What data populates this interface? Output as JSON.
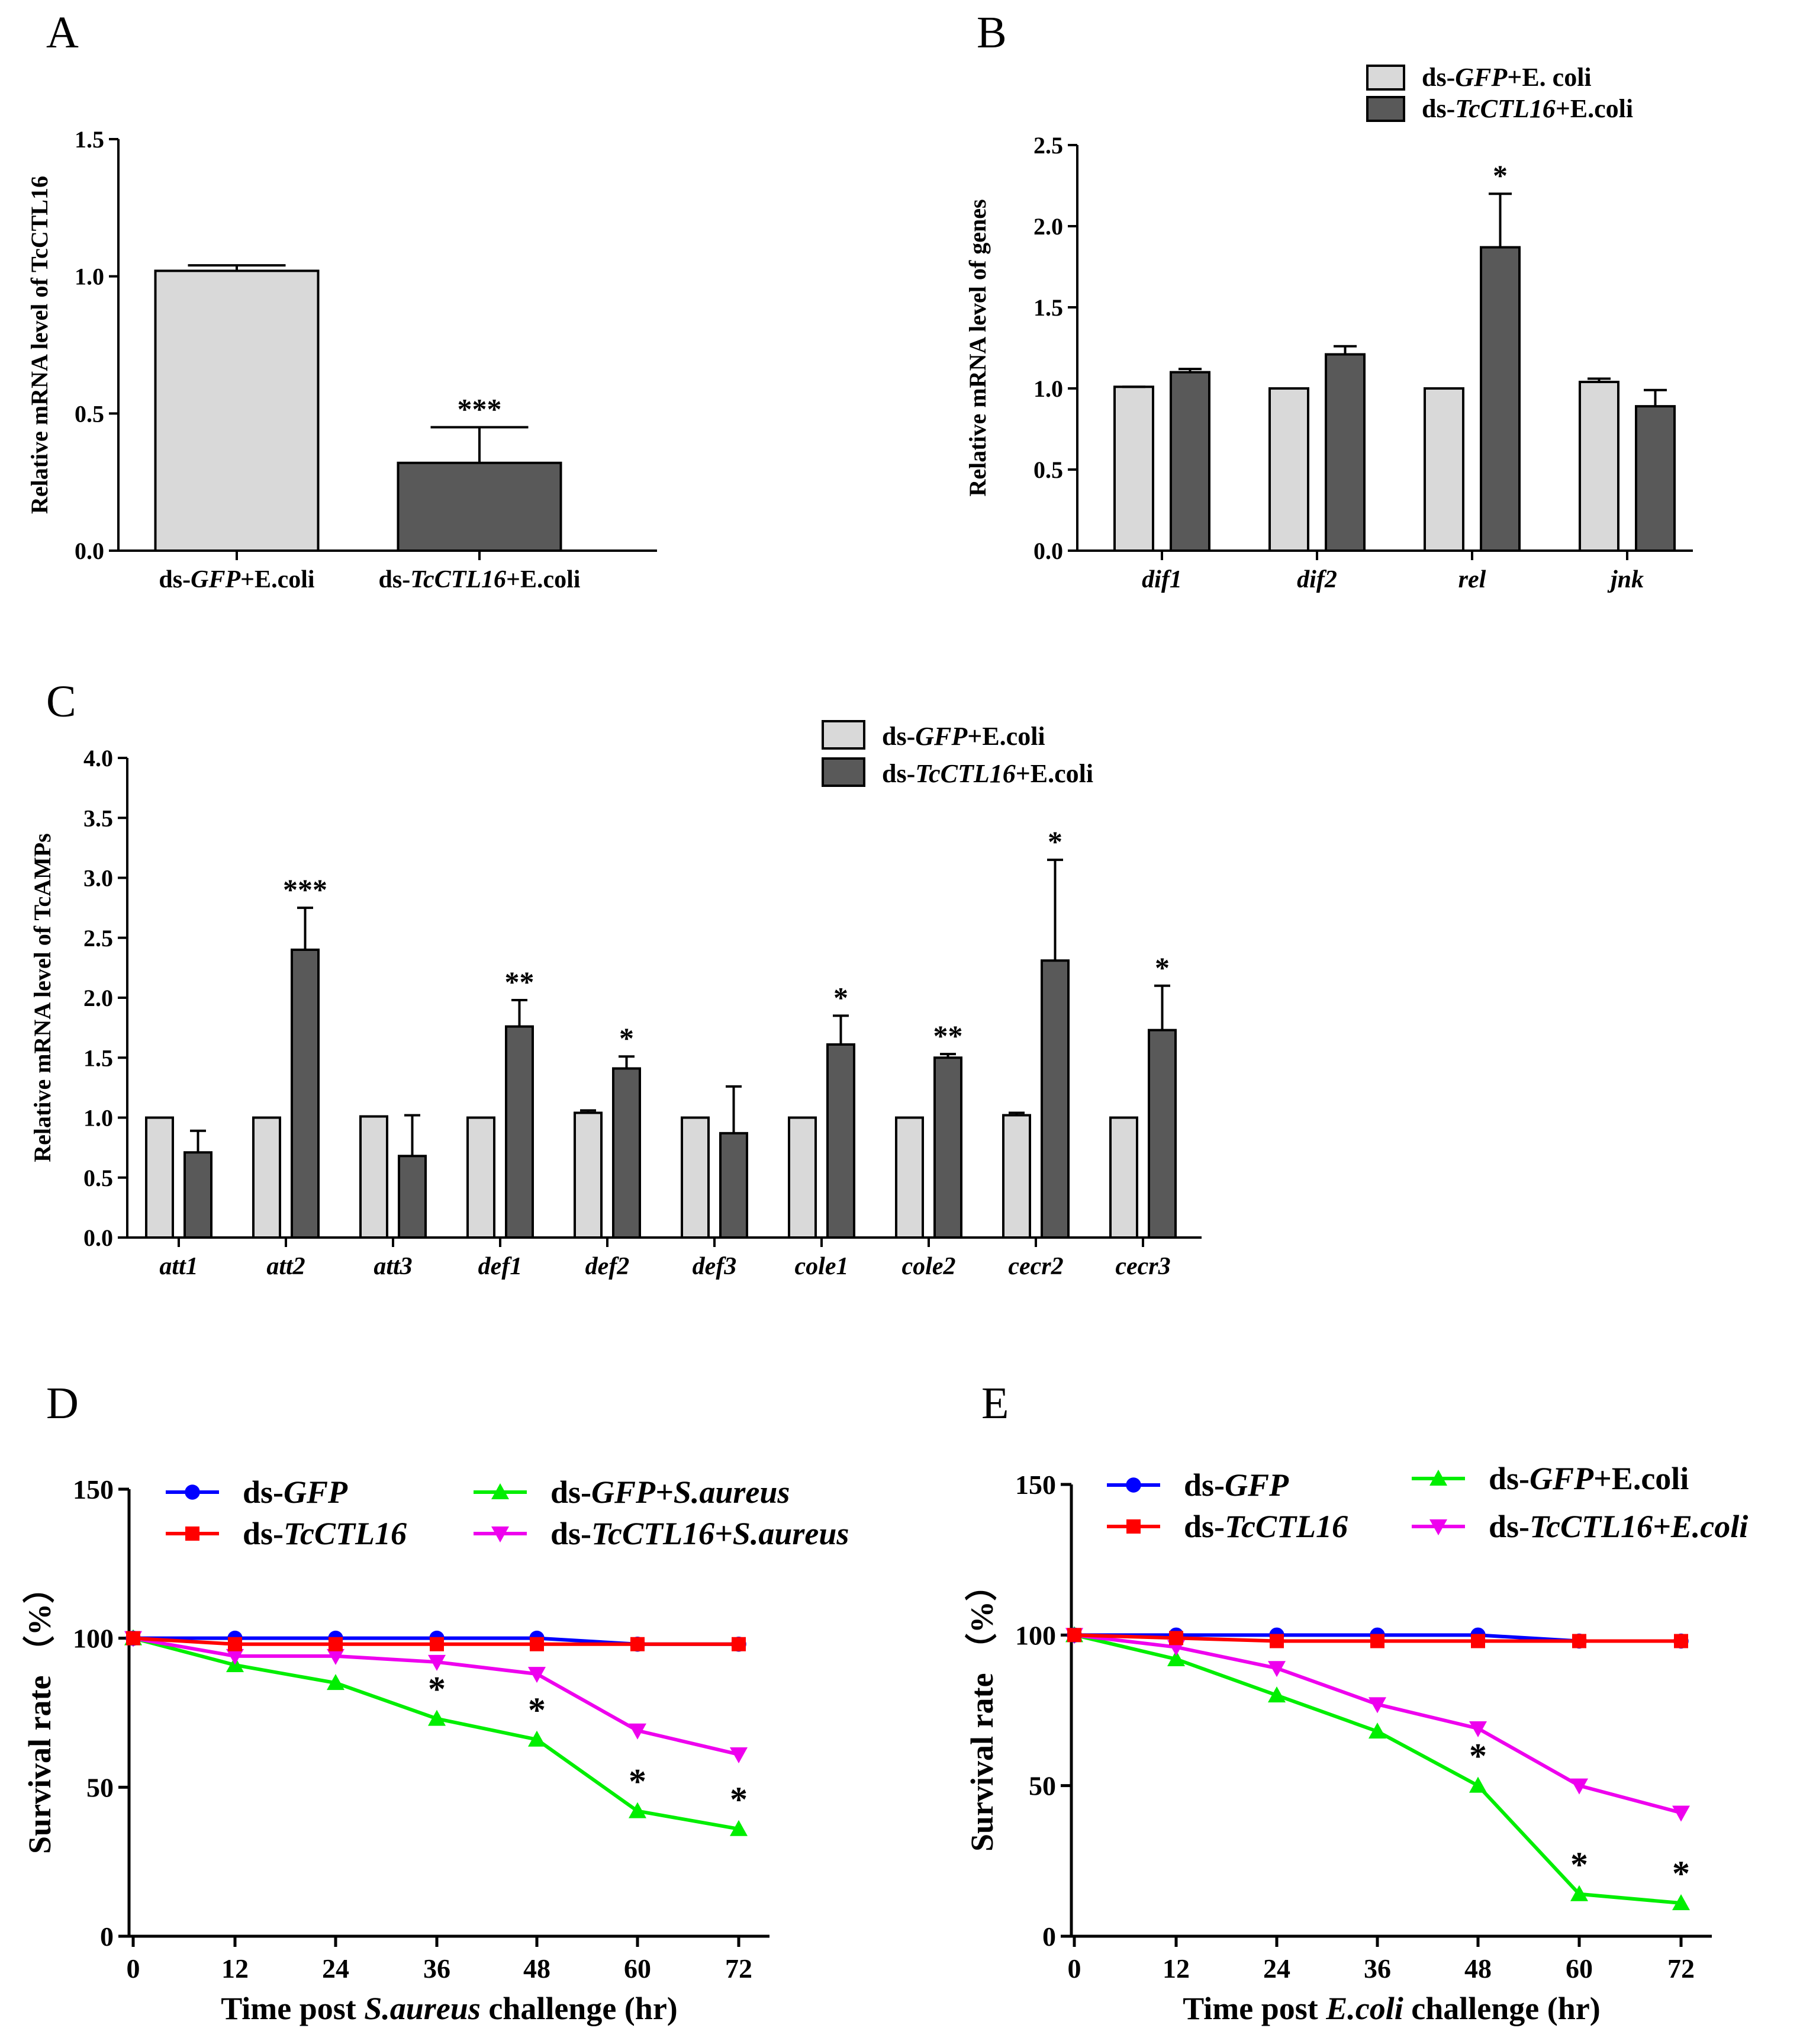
{
  "colors": {
    "light": "#d9d9d9",
    "dark": "#595959",
    "blue": "#0000ff",
    "red": "#ff0000",
    "green": "#00ee00",
    "magenta": "#ee00ee"
  },
  "chart_data": [
    {
      "id": "A",
      "type": "bar",
      "panel_label": "A",
      "ylabel": "Relative mRNA level of TcCTL16",
      "ylim": [
        0,
        1.5
      ],
      "yticks": [
        "0.0",
        "0.5",
        "1.0",
        "1.5"
      ],
      "categories": [
        {
          "prefix": "ds-",
          "ital": "GFP",
          "suffix": "+E.coli"
        },
        {
          "prefix": "ds-",
          "ital": "TcCTL16",
          "suffix": "+E.coli"
        }
      ],
      "series": [
        {
          "name": "values",
          "values": [
            1.02,
            0.32
          ],
          "errors": [
            0.02,
            0.13
          ],
          "colors": [
            "light",
            "dark"
          ]
        }
      ],
      "annotations": [
        "",
        "***"
      ]
    },
    {
      "id": "B",
      "type": "bar",
      "panel_label": "B",
      "ylabel": "Relative mRNA level of genes",
      "ylim": [
        0,
        2.5
      ],
      "yticks": [
        "0.0",
        "0.5",
        "1.0",
        "1.5",
        "2.0",
        "2.5"
      ],
      "categories": [
        "dif1",
        "dif2",
        "rel",
        "jnk"
      ],
      "legend": [
        {
          "prefix": "ds-",
          "ital": "GFP",
          "suffix": "+E. coli"
        },
        {
          "prefix": "ds-",
          "ital": "TcCTL16",
          "suffix": "+E.coli"
        }
      ],
      "series": [
        {
          "name": "ds-GFP+E. coli",
          "values": [
            1.01,
            1.0,
            1.0,
            1.04
          ],
          "errors": [
            0.0,
            0.0,
            0.0,
            0.02
          ],
          "color": "light"
        },
        {
          "name": "ds-TcCTL16+E.coli",
          "values": [
            1.1,
            1.21,
            1.87,
            0.89
          ],
          "errors": [
            0.02,
            0.05,
            0.33,
            0.1
          ],
          "color": "dark"
        }
      ],
      "annotations": [
        "",
        "",
        "*",
        ""
      ]
    },
    {
      "id": "C",
      "type": "bar",
      "panel_label": "C",
      "ylabel": "Relative mRNA level of TcAMPs",
      "ylim": [
        0,
        4.0
      ],
      "yticks": [
        "0.0",
        "0.5",
        "1.0",
        "1.5",
        "2.0",
        "2.5",
        "3.0",
        "3.5",
        "4.0"
      ],
      "categories": [
        "att1",
        "att2",
        "att3",
        "def1",
        "def2",
        "def3",
        "cole1",
        "cole2",
        "cecr2",
        "cecr3"
      ],
      "legend": [
        {
          "prefix": "ds-",
          "ital": "GFP",
          "suffix": "+E.coli"
        },
        {
          "prefix": "ds-",
          "ital": "TcCTL16",
          "suffix": "+E.coli"
        }
      ],
      "series": [
        {
          "name": "ds-GFP+E.coli",
          "values": [
            1.0,
            1.0,
            1.01,
            1.0,
            1.04,
            1.0,
            1.0,
            1.0,
            1.02,
            1.0
          ],
          "errors": [
            0,
            0,
            0,
            0,
            0.02,
            0,
            0,
            0,
            0.02,
            0
          ],
          "color": "light"
        },
        {
          "name": "ds-TcCTL16+E.coli",
          "values": [
            0.71,
            2.4,
            0.68,
            1.76,
            1.41,
            0.87,
            1.61,
            1.5,
            2.31,
            1.73
          ],
          "errors": [
            0.18,
            0.35,
            0.34,
            0.22,
            0.1,
            0.39,
            0.24,
            0.03,
            0.84,
            0.37
          ],
          "color": "dark"
        }
      ],
      "annotations": [
        "",
        "***",
        "",
        "**",
        "*",
        "",
        "*",
        "**",
        "*",
        "*"
      ]
    },
    {
      "id": "D",
      "type": "line",
      "panel_label": "D",
      "ylabel": "Survival rate （%）",
      "xlabel": {
        "prefix": "Time post ",
        "ital": "S.aureus",
        "suffix": " challenge (hr)"
      },
      "x": [
        0,
        12,
        24,
        36,
        48,
        60,
        72
      ],
      "xticks": [
        "0",
        "12",
        "24",
        "36",
        "48",
        "60",
        "72"
      ],
      "ylim": [
        0,
        150
      ],
      "yticks": [
        "0",
        "50",
        "100",
        "150"
      ],
      "series": [
        {
          "name": "ds-GFP",
          "leg": {
            "prefix": "ds-",
            "ital": "GFP",
            "suffix": ""
          },
          "values": [
            100,
            100,
            100,
            100,
            100,
            98,
            98
          ],
          "color": "blue",
          "marker": "circle"
        },
        {
          "name": "ds-TcCTL16",
          "leg": {
            "prefix": "ds-",
            "ital": "TcCTL16",
            "suffix": ""
          },
          "values": [
            100,
            98,
            98,
            98,
            98,
            98,
            98
          ],
          "color": "red",
          "marker": "square"
        },
        {
          "name": "ds-GFP+S.aureus",
          "leg": {
            "prefix": "ds-",
            "ital": "GFP+S.aureus",
            "suffix": ""
          },
          "values": [
            100,
            91,
            85,
            73,
            66,
            42,
            36
          ],
          "color": "green",
          "marker": "triangle-up"
        },
        {
          "name": "ds-TcCTL16+S.aureus",
          "leg": {
            "prefix": "ds-",
            "ital": "TcCTL16+S.aureus",
            "suffix": ""
          },
          "values": [
            100,
            94,
            94,
            92,
            88,
            69,
            61
          ],
          "color": "magenta",
          "marker": "triangle-down"
        }
      ],
      "annotations": [
        {
          "x": 36,
          "text": "*"
        },
        {
          "x": 48,
          "text": "*"
        },
        {
          "x": 60,
          "text": "*"
        },
        {
          "x": 72,
          "text": "*"
        }
      ]
    },
    {
      "id": "E",
      "type": "line",
      "panel_label": "E",
      "ylabel": "Survival rate （%）",
      "xlabel": {
        "prefix": "Time post ",
        "ital": "E.coli",
        "suffix": "  challenge (hr)"
      },
      "x": [
        0,
        12,
        24,
        36,
        48,
        60,
        72
      ],
      "xticks": [
        "0",
        "12",
        "24",
        "36",
        "48",
        "60",
        "72"
      ],
      "ylim": [
        0,
        150
      ],
      "yticks": [
        "0",
        "50",
        "100",
        "150"
      ],
      "series": [
        {
          "name": "ds-GFP",
          "leg": {
            "prefix": "ds-",
            "ital": "GFP",
            "suffix": ""
          },
          "values": [
            100,
            100,
            100,
            100,
            100,
            98,
            98
          ],
          "color": "blue",
          "marker": "circle"
        },
        {
          "name": "ds-TcCTL16",
          "leg": {
            "prefix": "ds-",
            "ital": "TcCTL16",
            "suffix": ""
          },
          "values": [
            100,
            99,
            98,
            98,
            98,
            98,
            98
          ],
          "color": "red",
          "marker": "square"
        },
        {
          "name": "ds-GFP+E.coli",
          "leg": {
            "prefix": "ds-",
            "ital": "GFP",
            "suffix": "+E.coli"
          },
          "values": [
            100,
            92,
            80,
            68,
            50,
            14,
            11
          ],
          "color": "green",
          "marker": "triangle-up"
        },
        {
          "name": "ds-TcCTL16+E.coli",
          "leg": {
            "prefix": "ds-",
            "ital": "TcCTL16+E.coli",
            "suffix": ""
          },
          "values": [
            100,
            96,
            89,
            77,
            69,
            50,
            41
          ],
          "color": "magenta",
          "marker": "triangle-down"
        }
      ],
      "annotations": [
        {
          "x": 48,
          "text": "*"
        },
        {
          "x": 60,
          "text": "*"
        },
        {
          "x": 72,
          "text": "*"
        }
      ]
    }
  ]
}
